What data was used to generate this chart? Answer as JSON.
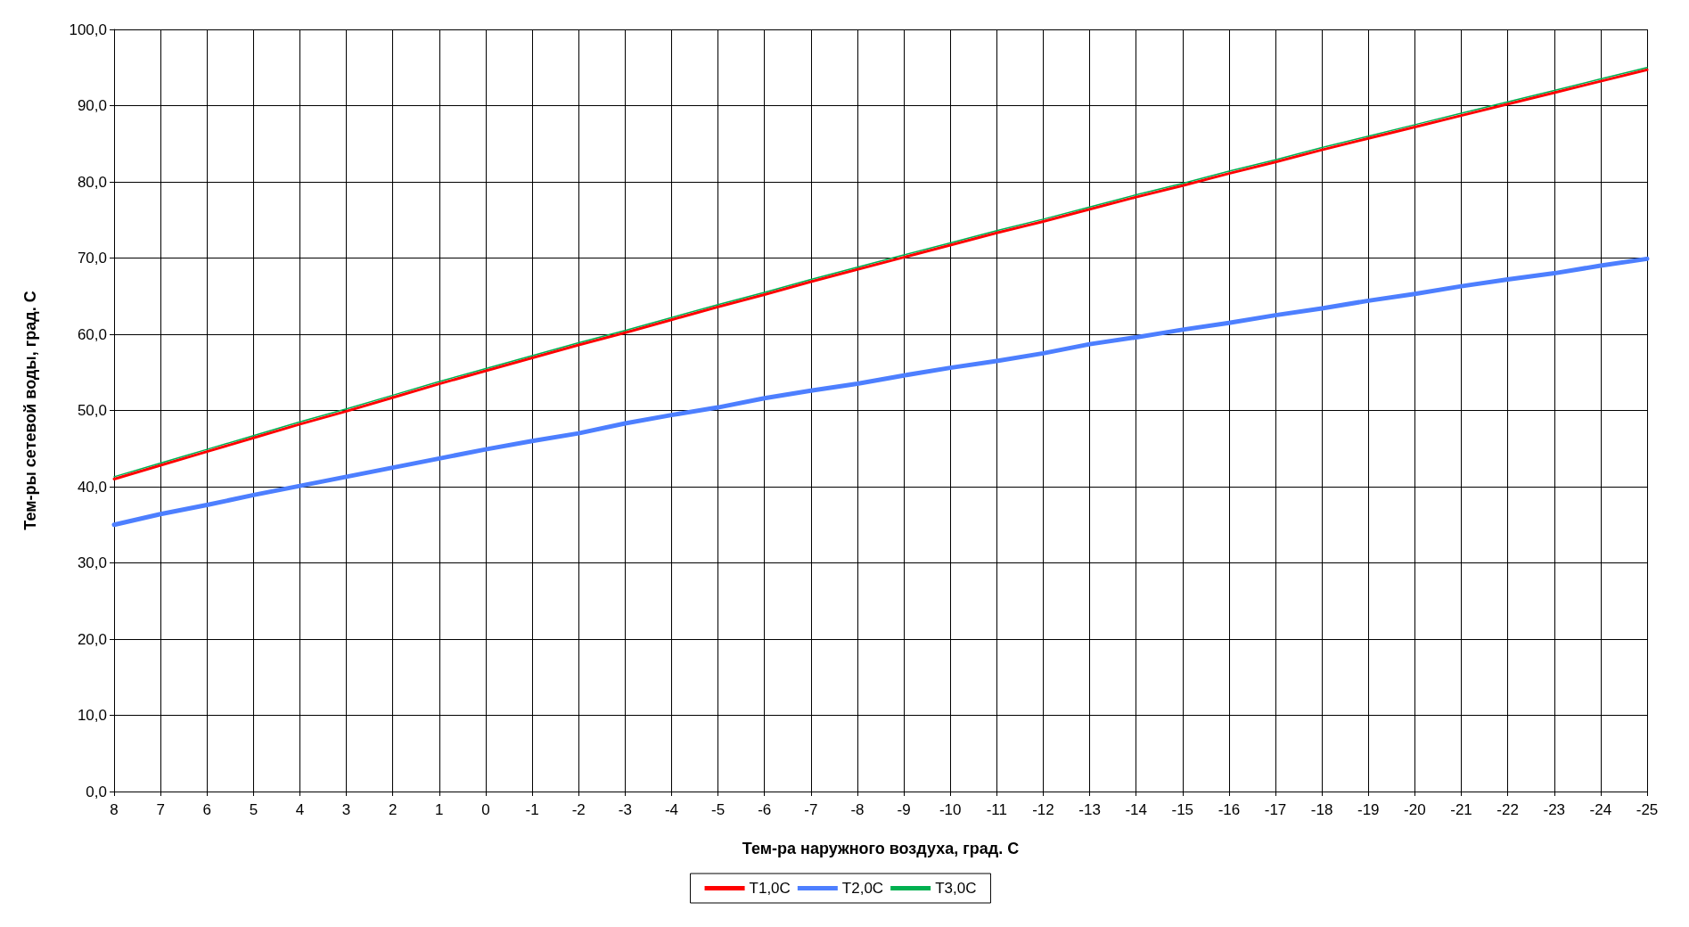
{
  "chart_data": {
    "type": "line",
    "xlabel": "Тем-ра наружного воздуха, град. С",
    "ylabel": "Тем-ры сетевой воды, град. С",
    "categories": [
      "8",
      "7",
      "6",
      "5",
      "4",
      "3",
      "2",
      "1",
      "0",
      "-1",
      "-2",
      "-3",
      "-4",
      "-5",
      "-6",
      "-7",
      "-8",
      "-9",
      "-10",
      "-11",
      "-12",
      "-13",
      "-14",
      "-15",
      "-16",
      "-17",
      "-18",
      "-19",
      "-20",
      "-21",
      "-22",
      "-23",
      "-24",
      "-25"
    ],
    "series": [
      {
        "name": "T1,0C",
        "color": "#ff0000",
        "values": [
          41.0,
          42.8,
          44.6,
          46.4,
          48.2,
          49.9,
          51.7,
          53.5,
          55.2,
          56.9,
          58.6,
          60.2,
          61.9,
          63.6,
          65.2,
          66.9,
          68.5,
          70.1,
          71.7,
          73.3,
          74.8,
          76.4,
          78.0,
          79.5,
          81.1,
          82.6,
          84.2,
          85.7,
          87.2,
          88.7,
          90.2,
          91.7,
          93.2,
          94.7
        ]
      },
      {
        "name": "T2,0C",
        "color": "#4d7fff",
        "values": [
          35.0,
          36.4,
          37.6,
          38.9,
          40.1,
          41.3,
          42.5,
          43.7,
          44.9,
          46.0,
          47.0,
          48.3,
          49.4,
          50.4,
          51.6,
          52.6,
          53.5,
          54.6,
          55.6,
          56.5,
          57.5,
          58.7,
          59.6,
          60.6,
          61.5,
          62.5,
          63.4,
          64.4,
          65.3,
          66.3,
          67.2,
          68.0,
          69.0,
          69.9
        ]
      },
      {
        "name": "T3,0C",
        "color": "#00b050",
        "values": [
          41.3,
          43.1,
          44.9,
          46.7,
          48.5,
          50.2,
          52.0,
          53.8,
          55.5,
          57.2,
          58.9,
          60.5,
          62.2,
          63.9,
          65.5,
          67.2,
          68.8,
          70.4,
          72.0,
          73.6,
          75.1,
          76.7,
          78.3,
          79.8,
          81.4,
          82.9,
          84.5,
          86.0,
          87.5,
          89.0,
          90.5,
          92.0,
          93.5,
          95.0
        ]
      }
    ],
    "ylim": [
      0,
      100
    ],
    "yticks": [
      {
        "value": 0,
        "label": "0,0"
      },
      {
        "value": 10,
        "label": "10,0"
      },
      {
        "value": 20,
        "label": "20,0"
      },
      {
        "value": 30,
        "label": "30,0"
      },
      {
        "value": 40,
        "label": "40,0"
      },
      {
        "value": 50,
        "label": "50,0"
      },
      {
        "value": 60,
        "label": "60,0"
      },
      {
        "value": 70,
        "label": "70,0"
      },
      {
        "value": 80,
        "label": "80,0"
      },
      {
        "value": 90,
        "label": "90,0"
      },
      {
        "value": 100,
        "label": "100,0"
      }
    ],
    "grid": true,
    "legend": "bottom",
    "marker": "none",
    "line_style": "solid"
  }
}
